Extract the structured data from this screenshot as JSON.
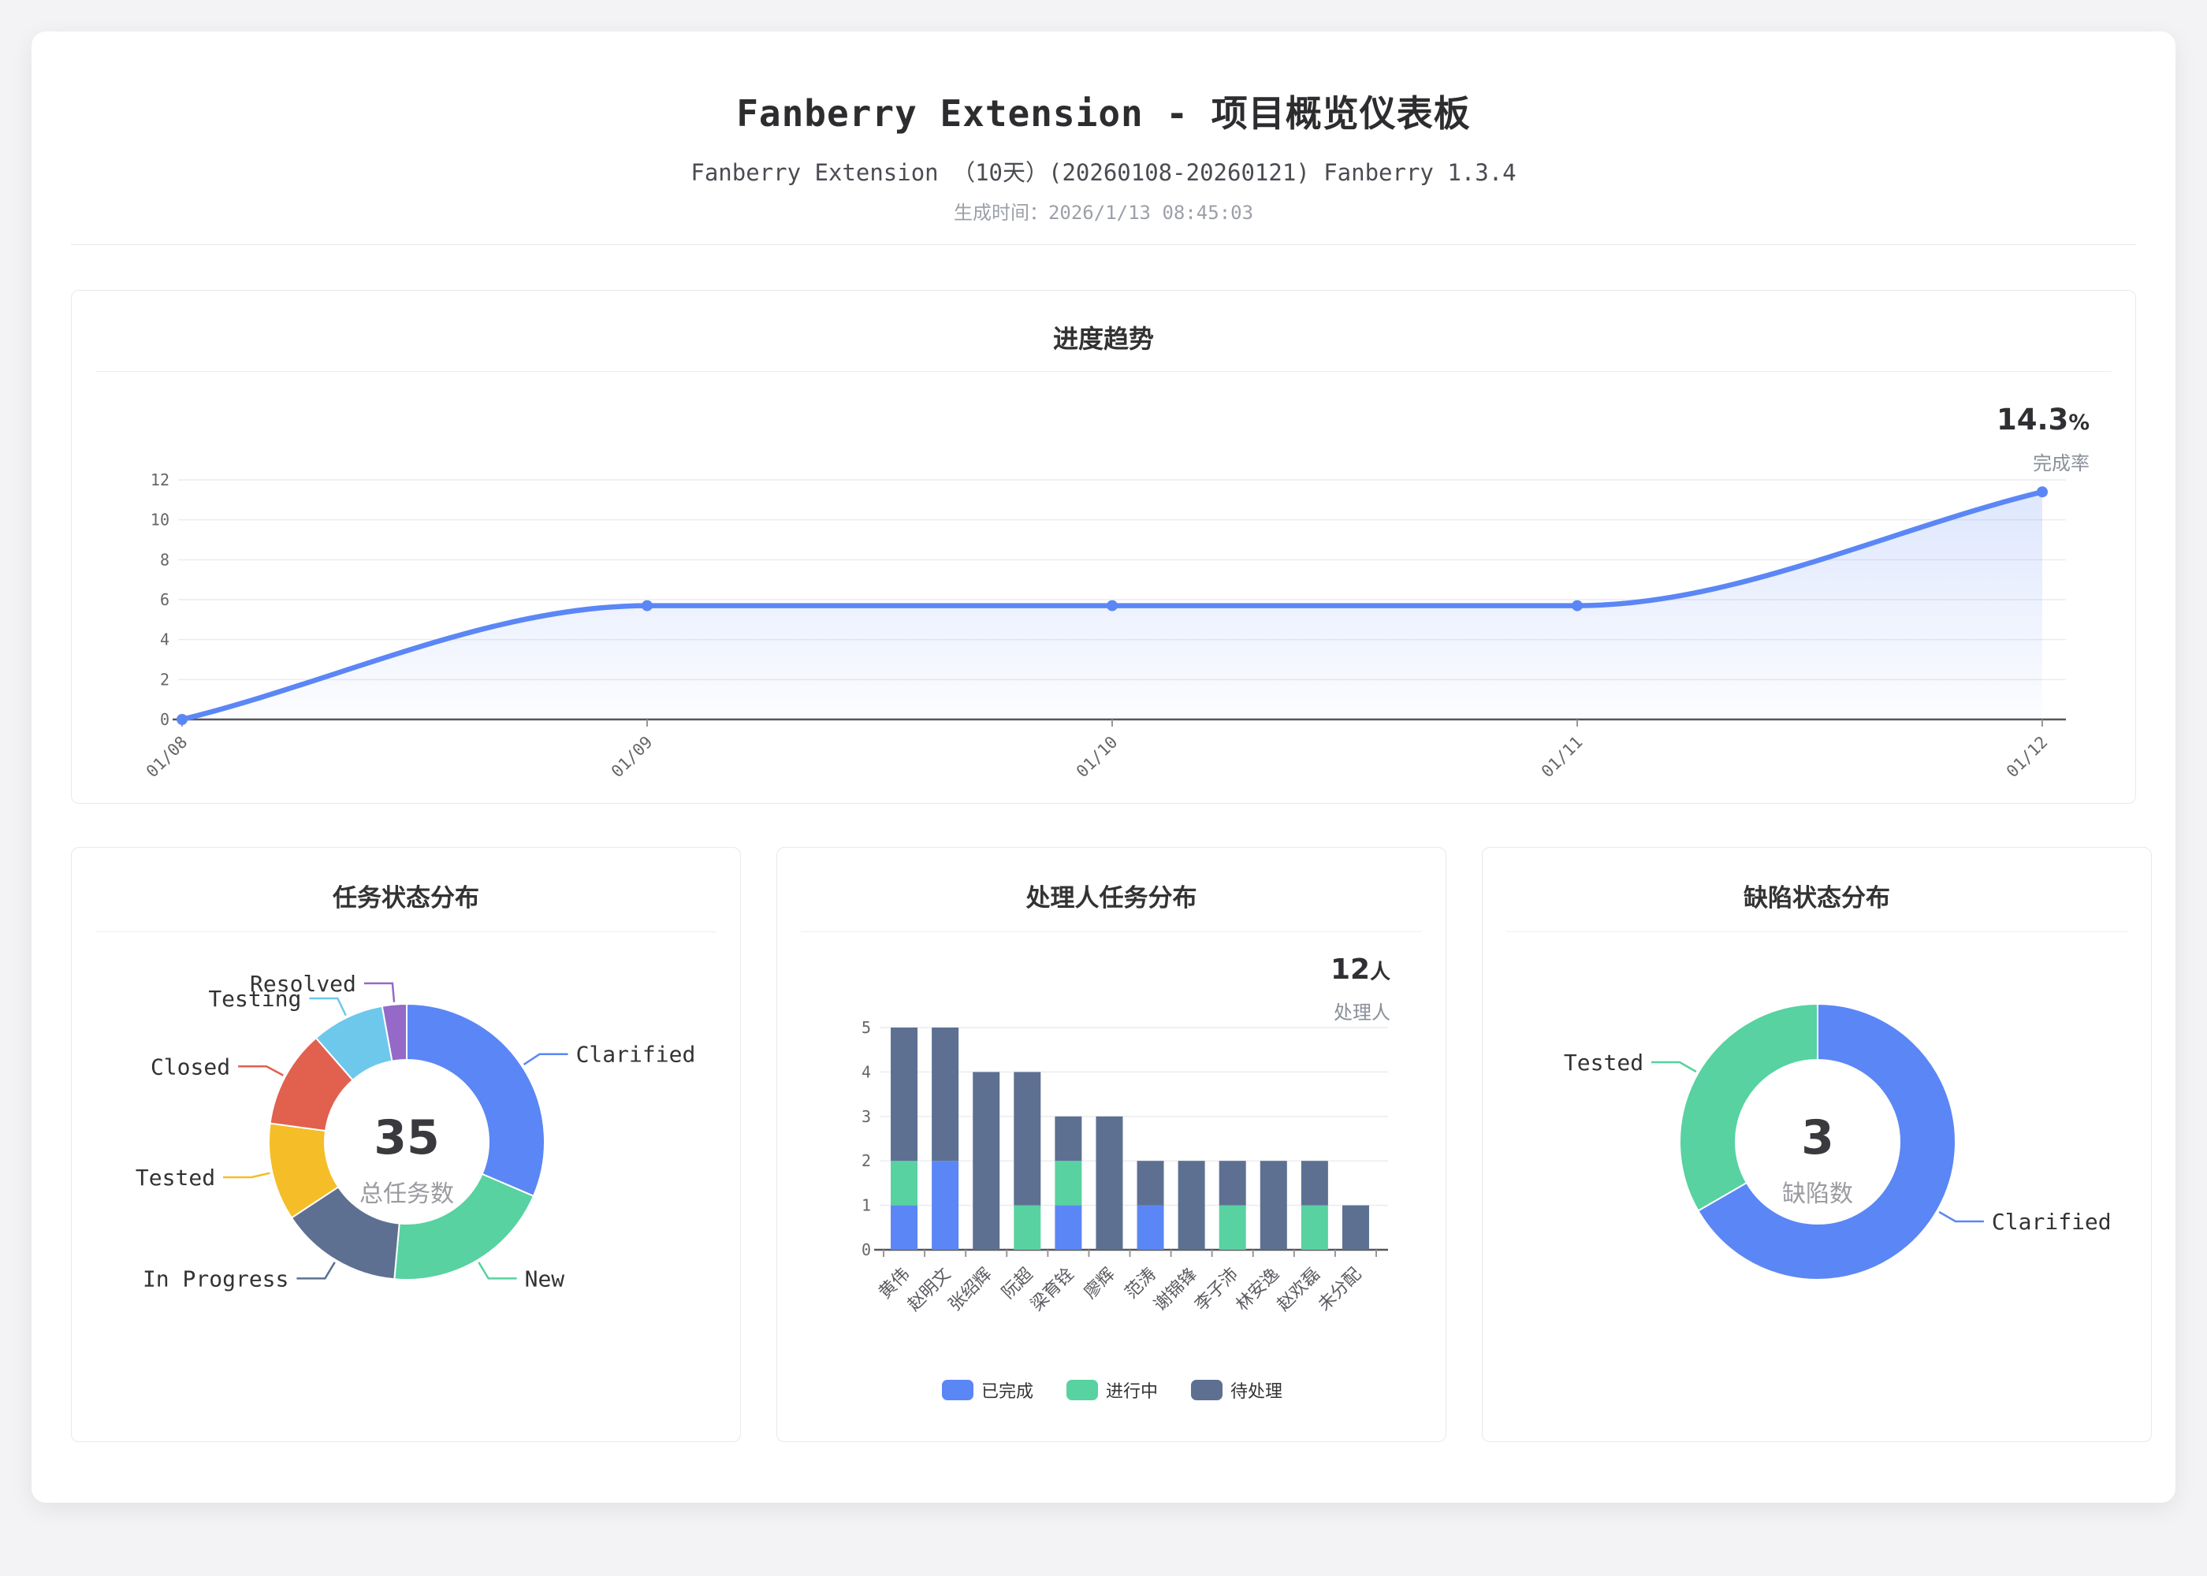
{
  "header": {
    "title": "Fanberry Extension - 项目概览仪表板",
    "subtitle": "Fanberry Extension （10天）(20260108-20260121) Fanberry 1.3.4",
    "generated_at": "生成时间：2026/1/13 08:45:03"
  },
  "colors": {
    "accent_blue": "#5B86F5",
    "green": "#57D2A0",
    "slate": "#5D7092",
    "yellow": "#F5BD27",
    "red": "#E2604E",
    "cyan": "#6DC8EC",
    "purple": "#9569C8",
    "axis": "#54565B",
    "grid": "#ECECF0",
    "tick_label": "#666666",
    "label_text": "#333333"
  },
  "chart_data": [
    {
      "id": "trend",
      "type": "line",
      "title": "进度趋势",
      "headline_value": "14.3%",
      "headline_label": "完成率",
      "x": [
        "01/08",
        "01/09",
        "01/10",
        "01/11",
        "01/12"
      ],
      "values": [
        0,
        5.7,
        5.7,
        5.7,
        11.4
      ],
      "ylim": [
        0,
        12
      ],
      "yticks": [
        0,
        2,
        4,
        6,
        8,
        10,
        12
      ],
      "xlabel": "",
      "ylabel": "",
      "grid": true,
      "smooth": true,
      "area_fill": true,
      "line_color": "#5B86F5"
    },
    {
      "id": "task-status",
      "type": "pie",
      "title": "任务状态分布",
      "center_value": "35",
      "center_label": "总任务数",
      "slices": [
        {
          "label": "Clarified",
          "value": 11,
          "color": "#5B86F5"
        },
        {
          "label": "New",
          "value": 7,
          "color": "#57D2A0"
        },
        {
          "label": "In Progress",
          "value": 5,
          "color": "#5D7092"
        },
        {
          "label": "Tested",
          "value": 4,
          "color": "#F5BD27"
        },
        {
          "label": "Closed",
          "value": 4,
          "color": "#E2604E"
        },
        {
          "label": "Testing",
          "value": 3,
          "color": "#6DC8EC"
        },
        {
          "label": "Resolved",
          "value": 1,
          "color": "#9569C8"
        }
      ]
    },
    {
      "id": "assignee",
      "type": "bar",
      "title": "处理人任务分布",
      "headline_value": "12人",
      "headline_label": "处理人",
      "categories": [
        "黄伟",
        "赵明文",
        "张绍辉",
        "阮超",
        "梁育铨",
        "廖辉",
        "范涛",
        "谢锦锋",
        "李子沛",
        "林安逸",
        "赵欢磊",
        "未分配"
      ],
      "series": [
        {
          "name": "已完成",
          "color": "#5B86F5",
          "values": [
            1,
            2,
            0,
            0,
            1,
            0,
            1,
            0,
            0,
            0,
            0,
            0
          ]
        },
        {
          "name": "进行中",
          "color": "#57D2A0",
          "values": [
            1,
            0,
            0,
            1,
            1,
            0,
            0,
            0,
            1,
            0,
            1,
            0
          ]
        },
        {
          "name": "待处理",
          "color": "#5D7092",
          "values": [
            3,
            3,
            4,
            3,
            1,
            3,
            1,
            2,
            1,
            2,
            1,
            1
          ]
        }
      ],
      "stacked": true,
      "ylim": [
        0,
        5
      ],
      "yticks": [
        0,
        1,
        2,
        3,
        4,
        5
      ],
      "legend_position": "bottom"
    },
    {
      "id": "defect-status",
      "type": "pie",
      "title": "缺陷状态分布",
      "center_value": "3",
      "center_label": "缺陷数",
      "slices": [
        {
          "label": "Clarified",
          "value": 2,
          "color": "#5B86F5"
        },
        {
          "label": "Tested",
          "value": 1,
          "color": "#57D2A0"
        }
      ]
    }
  ]
}
